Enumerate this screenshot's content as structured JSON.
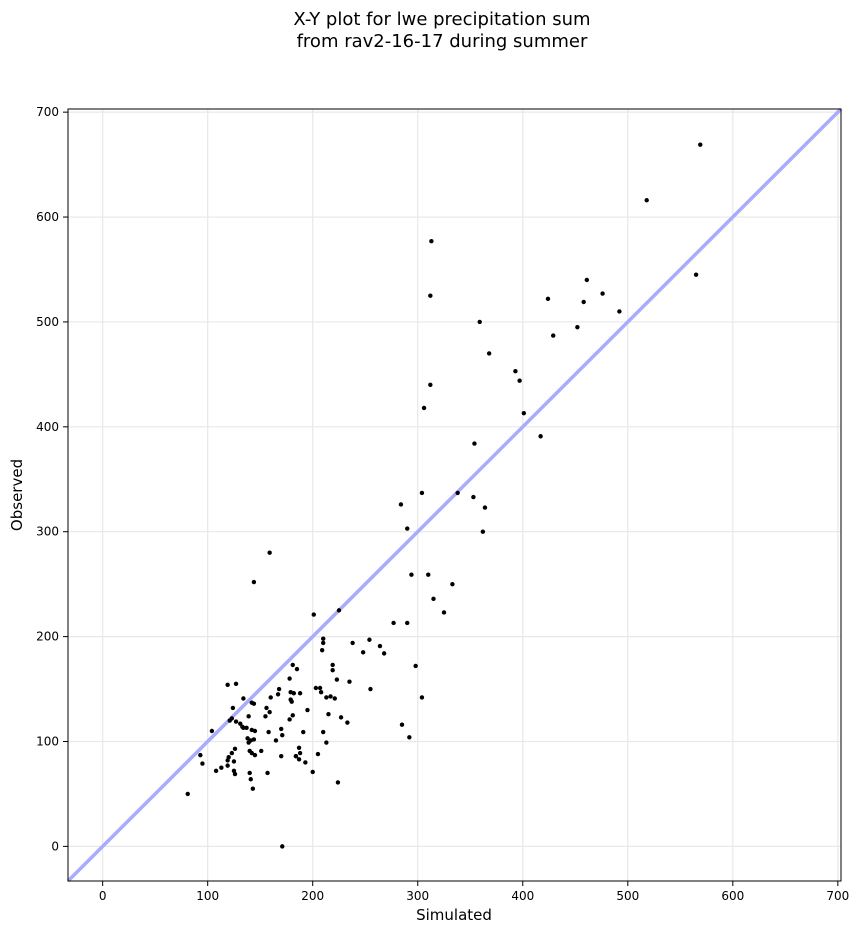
{
  "chart_data": {
    "type": "scatter",
    "title_lines": [
      "X-Y plot for lwe precipitation sum",
      "from rav2-16-17 during summer"
    ],
    "xlabel": "Simulated",
    "ylabel": "Observed",
    "xlim": [
      -33,
      703
    ],
    "ylim": [
      -33,
      703
    ],
    "xticks": [
      0,
      100,
      200,
      300,
      400,
      500,
      600,
      700
    ],
    "yticks": [
      0,
      100,
      200,
      300,
      400,
      500,
      600,
      700
    ],
    "grid": true,
    "reference_line": {
      "type": "one-to-one",
      "color": "#aaaaff"
    },
    "point_color": "#000000",
    "points": [
      [
        569,
        669
      ],
      [
        518,
        616
      ],
      [
        565,
        545
      ],
      [
        313,
        577
      ],
      [
        312,
        525
      ],
      [
        461,
        540
      ],
      [
        476,
        527
      ],
      [
        458,
        519
      ],
      [
        424,
        522
      ],
      [
        492,
        510
      ],
      [
        452,
        495
      ],
      [
        429,
        487
      ],
      [
        359,
        500
      ],
      [
        368,
        470
      ],
      [
        393,
        453
      ],
      [
        397,
        444
      ],
      [
        312,
        440
      ],
      [
        306,
        418
      ],
      [
        401,
        413
      ],
      [
        417,
        391
      ],
      [
        354,
        384
      ],
      [
        338,
        337
      ],
      [
        304,
        337
      ],
      [
        353,
        333
      ],
      [
        284,
        326
      ],
      [
        364,
        323
      ],
      [
        290,
        303
      ],
      [
        362,
        300
      ],
      [
        159,
        280
      ],
      [
        294,
        259
      ],
      [
        310,
        259
      ],
      [
        333,
        250
      ],
      [
        144,
        252
      ],
      [
        315,
        236
      ],
      [
        325,
        223
      ],
      [
        201,
        221
      ],
      [
        225,
        225
      ],
      [
        277,
        213
      ],
      [
        290,
        213
      ],
      [
        254,
        197
      ],
      [
        238,
        194
      ],
      [
        264,
        191
      ],
      [
        210,
        198
      ],
      [
        210,
        194
      ],
      [
        248,
        185
      ],
      [
        268,
        184
      ],
      [
        209,
        187
      ],
      [
        219,
        173
      ],
      [
        219,
        168
      ],
      [
        223,
        159
      ],
      [
        235,
        157
      ],
      [
        181,
        173
      ],
      [
        185,
        169
      ],
      [
        178,
        160
      ],
      [
        203,
        151
      ],
      [
        207,
        151
      ],
      [
        208,
        147
      ],
      [
        255,
        150
      ],
      [
        168,
        150
      ],
      [
        167,
        145
      ],
      [
        179,
        147
      ],
      [
        182,
        146
      ],
      [
        213,
        142
      ],
      [
        217,
        143
      ],
      [
        221,
        141
      ],
      [
        304,
        142
      ],
      [
        119,
        154
      ],
      [
        127,
        155
      ],
      [
        160,
        142
      ],
      [
        134,
        141
      ],
      [
        179,
        140
      ],
      [
        180,
        138
      ],
      [
        124,
        132
      ],
      [
        142,
        137
      ],
      [
        144,
        136
      ],
      [
        156,
        132
      ],
      [
        159,
        128
      ],
      [
        188,
        146
      ],
      [
        298,
        172
      ],
      [
        181,
        125
      ],
      [
        178,
        121
      ],
      [
        215,
        126
      ],
      [
        195,
        130
      ],
      [
        227,
        123
      ],
      [
        233,
        118
      ],
      [
        139,
        124
      ],
      [
        155,
        124
      ],
      [
        123,
        122
      ],
      [
        127,
        119
      ],
      [
        121,
        120
      ],
      [
        131,
        117
      ],
      [
        133,
        114
      ],
      [
        134,
        113
      ],
      [
        137,
        113
      ],
      [
        142,
        111
      ],
      [
        145,
        110
      ],
      [
        158,
        109
      ],
      [
        170,
        112
      ],
      [
        171,
        106
      ],
      [
        104,
        110
      ],
      [
        138,
        103
      ],
      [
        141,
        101
      ],
      [
        139,
        99
      ],
      [
        144,
        102
      ],
      [
        165,
        101
      ],
      [
        191,
        109
      ],
      [
        210,
        109
      ],
      [
        213,
        99
      ],
      [
        285,
        116
      ],
      [
        292,
        104
      ],
      [
        187,
        94
      ],
      [
        188,
        89
      ],
      [
        184,
        86
      ],
      [
        126,
        93
      ],
      [
        123,
        89
      ],
      [
        120,
        85
      ],
      [
        119,
        82
      ],
      [
        125,
        81
      ],
      [
        140,
        91
      ],
      [
        142,
        89
      ],
      [
        151,
        91
      ],
      [
        145,
        87
      ],
      [
        170,
        86
      ],
      [
        184,
        86
      ],
      [
        187,
        83
      ],
      [
        193,
        80
      ],
      [
        205,
        88
      ],
      [
        93,
        87
      ],
      [
        95,
        79
      ],
      [
        119,
        77
      ],
      [
        113,
        75
      ],
      [
        108,
        72
      ],
      [
        125,
        72
      ],
      [
        126,
        69
      ],
      [
        140,
        70
      ],
      [
        141,
        64
      ],
      [
        157,
        70
      ],
      [
        200,
        71
      ],
      [
        224,
        61
      ],
      [
        143,
        55
      ],
      [
        81,
        50
      ],
      [
        171,
        0
      ]
    ]
  }
}
